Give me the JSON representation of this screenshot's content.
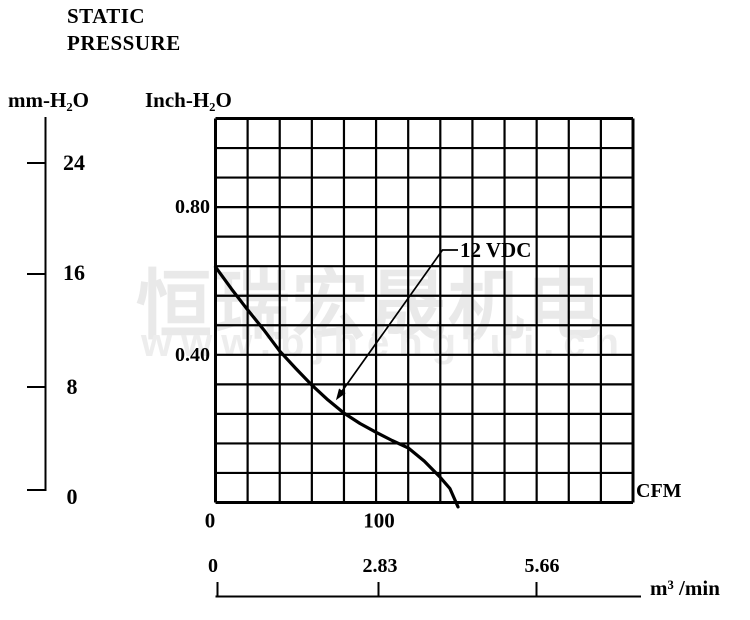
{
  "header": {
    "title_line1": "STATIC",
    "title_line2": "PRESSURE"
  },
  "axes": {
    "left_unit_primary": "mm-H₂O",
    "left_unit_secondary": "Inch-H₂O",
    "x_unit_primary": "CFM",
    "x_unit_secondary": "m³ /min",
    "mm_ticks": [
      "24",
      "16",
      "8",
      "0"
    ],
    "inch_ticks": [
      "0.80",
      "0.40"
    ],
    "cfm_ticks": [
      "0",
      "100"
    ],
    "m3min_ticks": [
      "0",
      "2.83",
      "5.66"
    ]
  },
  "annotation": {
    "curve_label": "12 VDC"
  },
  "watermark": {
    "cjk": "恒瑞宏晟机电",
    "url": "www.bjhengrui.cn"
  },
  "colors": {
    "ink": "#000000",
    "watermark_cjk": "#e9e9e9",
    "watermark_url": "#ededed"
  },
  "chart_data": {
    "type": "line",
    "title": "STATIC PRESSURE",
    "xlabel_primary": "CFM",
    "xlabel_secondary": "m³ /min",
    "ylabel_primary": "Inch-H₂O",
    "ylabel_secondary": "mm-H₂O",
    "x_range_cfm": [
      0,
      260
    ],
    "y_range_inch": [
      0,
      1.04
    ],
    "x_ticks_cfm": [
      0,
      100
    ],
    "x_ticks_m3min": [
      0,
      2.83,
      5.66
    ],
    "y_ticks_inch": [
      0.4,
      0.8
    ],
    "y_ticks_mm": [
      0,
      8,
      16,
      24
    ],
    "grid": {
      "rows": 13,
      "cols": 13,
      "cfm_per_col": 20,
      "inch_per_row": 0.08
    },
    "legend_position": "none",
    "series": [
      {
        "name": "12 VDC",
        "points_cfm_inch": [
          [
            0,
            0.638
          ],
          [
            10,
            0.578
          ],
          [
            20,
            0.522
          ],
          [
            30,
            0.468
          ],
          [
            40,
            0.41
          ],
          [
            50,
            0.363
          ],
          [
            60,
            0.318
          ],
          [
            70,
            0.278
          ],
          [
            80,
            0.242
          ],
          [
            90,
            0.214
          ],
          [
            100,
            0.19
          ],
          [
            110,
            0.168
          ],
          [
            120,
            0.148
          ],
          [
            130,
            0.112
          ],
          [
            140,
            0.068
          ],
          [
            146,
            0.038
          ],
          [
            151,
            -0.012
          ]
        ]
      }
    ],
    "annotation": {
      "label": "12 VDC",
      "arrow_target_cfm_inch": [
        75,
        0.277
      ]
    }
  }
}
